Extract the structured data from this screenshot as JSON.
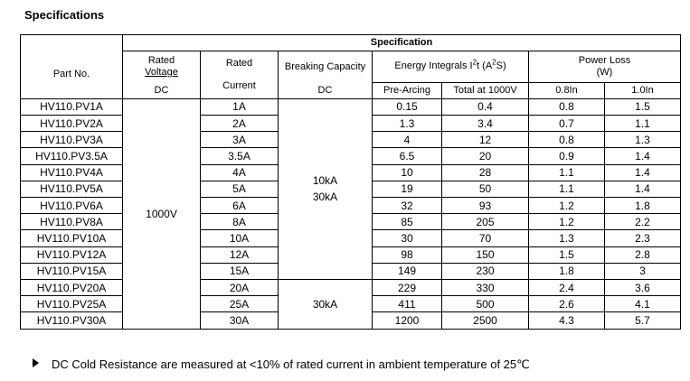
{
  "title": "Specifications",
  "table": {
    "group_header": "Specification",
    "part_no_header": "Part No.",
    "voltage_header_1": "Rated",
    "voltage_header_2": "Voltage",
    "voltage_unit": "DC",
    "current_header_1": "Rated",
    "current_header_2": "Current",
    "breaking_header": "Breaking Capacity",
    "breaking_unit": "DC",
    "energy_header_pre": "Energy Integrals I",
    "energy_header_sup1": "2",
    "energy_header_mid": "t (A",
    "energy_header_sup2": "2",
    "energy_header_post": "S)",
    "pre_arcing_header": "Pre-Arcing",
    "total_header": "Total at 1000V",
    "power_loss_header": "Power Loss",
    "power_loss_unit": "(W)",
    "pl_08_header": "0.8In",
    "pl_10_header": "1.0In",
    "rated_voltage": "1000V",
    "breaking_group_1_line1": "10kA",
    "breaking_group_1_line2": "30kA",
    "breaking_group_2": "30kA",
    "rows": [
      {
        "part": "HV110.PV1A",
        "current": "1A",
        "pre": "0.15",
        "total": "0.4",
        "pl08": "0.8",
        "pl10": "1.5"
      },
      {
        "part": "HV110.PV2A",
        "current": "2A",
        "pre": "1.3",
        "total": "3.4",
        "pl08": "0.7",
        "pl10": "1.1"
      },
      {
        "part": "HV110.PV3A",
        "current": "3A",
        "pre": "4",
        "total": "12",
        "pl08": "0.8",
        "pl10": "1.3"
      },
      {
        "part": "HV110.PV3.5A",
        "current": "3.5A",
        "pre": "6.5",
        "total": "20",
        "pl08": "0.9",
        "pl10": "1.4"
      },
      {
        "part": "HV110.PV4A",
        "current": "4A",
        "pre": "10",
        "total": "28",
        "pl08": "1.1",
        "pl10": "1.4"
      },
      {
        "part": "HV110.PV5A",
        "current": "5A",
        "pre": "19",
        "total": "50",
        "pl08": "1.1",
        "pl10": "1.4"
      },
      {
        "part": "HV110.PV6A",
        "current": "6A",
        "pre": "32",
        "total": "93",
        "pl08": "1.2",
        "pl10": "1.8"
      },
      {
        "part": "HV110.PV8A",
        "current": "8A",
        "pre": "85",
        "total": "205",
        "pl08": "1.2",
        "pl10": "2.2"
      },
      {
        "part": "HV110.PV10A",
        "current": "10A",
        "pre": "30",
        "total": "70",
        "pl08": "1.3",
        "pl10": "2.3"
      },
      {
        "part": "HV110.PV12A",
        "current": "12A",
        "pre": "98",
        "total": "150",
        "pl08": "1.5",
        "pl10": "2.8"
      },
      {
        "part": "HV110.PV15A",
        "current": "15A",
        "pre": "149",
        "total": "230",
        "pl08": "1.8",
        "pl10": "3"
      },
      {
        "part": "HV110.PV20A",
        "current": "20A",
        "pre": "229",
        "total": "330",
        "pl08": "2.4",
        "pl10": "3.6"
      },
      {
        "part": "HV110.PV25A",
        "current": "25A",
        "pre": "411",
        "total": "500",
        "pl08": "2.6",
        "pl10": "4.1"
      },
      {
        "part": "HV110.PV30A",
        "current": "30A",
        "pre": "1200",
        "total": "2500",
        "pl08": "4.3",
        "pl10": "5.7"
      }
    ]
  },
  "note": "DC Cold Resistance are measured at <10% of rated current in ambient temperature of 25℃",
  "note_bullet_icon": "right-arrow-bullet"
}
